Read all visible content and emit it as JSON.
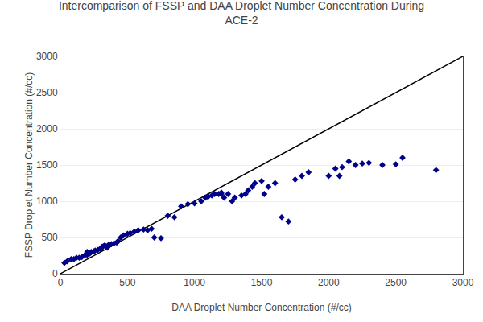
{
  "chart_data": {
    "type": "scatter",
    "title": "Intercomparison of FSSP and DAA Droplet Number Concentration During\nACE-2",
    "xlabel": "DAA Droplet Number Concentration (#/cc)",
    "ylabel": "FSSP Droplet Number Concentration (#/cc)",
    "xlim": [
      0,
      3000
    ],
    "ylim": [
      0,
      3000
    ],
    "xticks": [
      0,
      500,
      1000,
      1500,
      2000,
      2500,
      3000
    ],
    "yticks": [
      0,
      500,
      1000,
      1500,
      2000,
      2500,
      3000
    ],
    "grid": "y",
    "series": [
      {
        "type": "line",
        "color": "#000000",
        "line_style": "solid",
        "x": [
          0,
          3000
        ],
        "values": [
          0,
          3000
        ]
      },
      {
        "type": "scatter",
        "color": "#00008B",
        "marker": "diamond",
        "x": [
          30,
          50,
          80,
          100,
          120,
          140,
          160,
          180,
          200,
          200,
          220,
          230,
          250,
          260,
          280,
          300,
          300,
          310,
          320,
          330,
          340,
          350,
          360,
          380,
          400,
          420,
          430,
          450,
          470,
          500,
          520,
          550,
          580,
          620,
          650,
          680,
          700,
          750,
          800,
          850,
          900,
          950,
          1000,
          1050,
          1080,
          1100,
          1100,
          1130,
          1150,
          1180,
          1200,
          1200,
          1220,
          1250,
          1280,
          1300,
          1350,
          1380,
          1400,
          1430,
          1450,
          1500,
          1520,
          1550,
          1600,
          1650,
          1700,
          1750,
          1800,
          1850,
          2000,
          2050,
          2080,
          2100,
          2150,
          2200,
          2250,
          2300,
          2400,
          2500,
          2550,
          2800
        ],
        "values": [
          150,
          170,
          200,
          200,
          220,
          220,
          230,
          250,
          260,
          300,
          280,
          300,
          310,
          320,
          330,
          340,
          350,
          370,
          380,
          390,
          380,
          360,
          400,
          410,
          420,
          430,
          450,
          500,
          530,
          550,
          560,
          580,
          600,
          610,
          600,
          620,
          500,
          490,
          800,
          780,
          930,
          960,
          970,
          1000,
          1050,
          1060,
          1070,
          1080,
          1100,
          1100,
          1100,
          1120,
          1050,
          1100,
          1000,
          1050,
          1080,
          1100,
          1150,
          1200,
          1250,
          1280,
          1100,
          1200,
          1250,
          780,
          720,
          1300,
          1350,
          1400,
          1350,
          1450,
          1350,
          1470,
          1550,
          1500,
          1520,
          1530,
          1500,
          1510,
          1600,
          1430
        ]
      }
    ]
  }
}
